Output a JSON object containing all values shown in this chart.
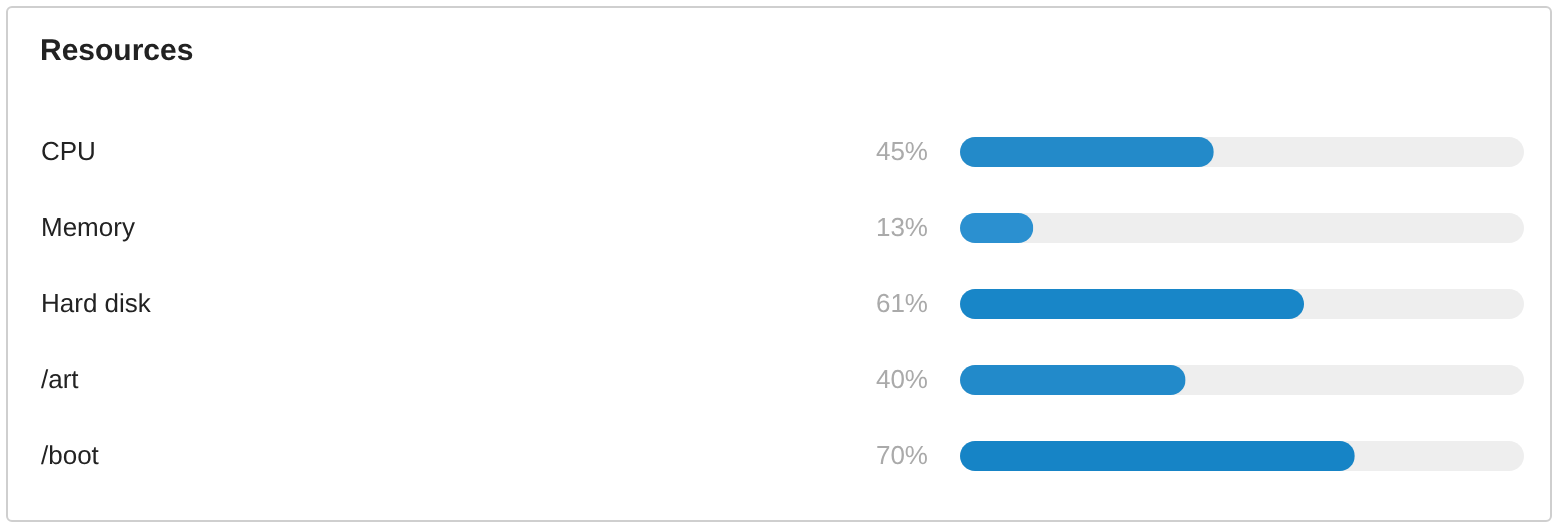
{
  "chart_data": {
    "type": "bar",
    "orientation": "horizontal",
    "title": "Resources",
    "categories": [
      "CPU",
      "Memory",
      "Hard disk",
      "/art",
      "/boot"
    ],
    "values": [
      45,
      13,
      61,
      40,
      70
    ],
    "value_labels": [
      "45%",
      "13%",
      "61%",
      "40%",
      "70%"
    ],
    "colors": [
      "#238ac9",
      "#2b90d0",
      "#1886c8",
      "#228aca",
      "#1684c6"
    ],
    "xlim": [
      0,
      100
    ],
    "tick_labels": "y"
  }
}
